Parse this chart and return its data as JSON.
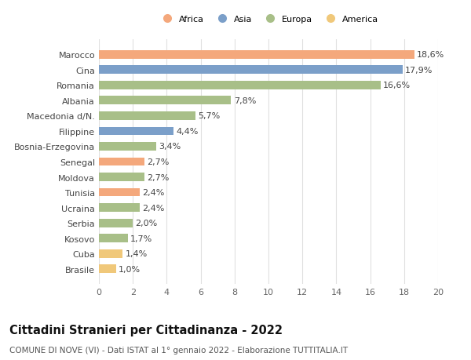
{
  "categories": [
    "Brasile",
    "Cuba",
    "Kosovo",
    "Serbia",
    "Ucraina",
    "Tunisia",
    "Moldova",
    "Senegal",
    "Bosnia-Erzegovina",
    "Filippine",
    "Macedonia d/N.",
    "Albania",
    "Romania",
    "Cina",
    "Marocco"
  ],
  "values": [
    1.0,
    1.4,
    1.7,
    2.0,
    2.4,
    2.4,
    2.7,
    2.7,
    3.4,
    4.4,
    5.7,
    7.8,
    16.6,
    17.9,
    18.6
  ],
  "labels": [
    "1,0%",
    "1,4%",
    "1,7%",
    "2,0%",
    "2,4%",
    "2,4%",
    "2,7%",
    "2,7%",
    "3,4%",
    "4,4%",
    "5,7%",
    "7,8%",
    "16,6%",
    "17,9%",
    "18,6%"
  ],
  "colors": [
    "#F0C87A",
    "#F0C87A",
    "#A8BF88",
    "#A8BF88",
    "#A8BF88",
    "#F4A87C",
    "#A8BF88",
    "#F4A87C",
    "#A8BF88",
    "#7B9FC9",
    "#A8BF88",
    "#A8BF88",
    "#A8BF88",
    "#7B9FC9",
    "#F4A87C"
  ],
  "continent": [
    "America",
    "America",
    "Europa",
    "Europa",
    "Europa",
    "Africa",
    "Europa",
    "Africa",
    "Europa",
    "Asia",
    "Europa",
    "Europa",
    "Europa",
    "Asia",
    "Africa"
  ],
  "legend_labels": [
    "Africa",
    "Asia",
    "Europa",
    "America"
  ],
  "legend_colors": [
    "#F4A87C",
    "#7B9FC9",
    "#A8BF88",
    "#F0C87A"
  ],
  "title": "Cittadini Stranieri per Cittadinanza - 2022",
  "subtitle": "COMUNE DI NOVE (VI) - Dati ISTAT al 1° gennaio 2022 - Elaborazione TUTTITALIA.IT",
  "xlim": [
    0,
    20
  ],
  "xticks": [
    0,
    2,
    4,
    6,
    8,
    10,
    12,
    14,
    16,
    18,
    20
  ],
  "bg_color": "#ffffff",
  "grid_color": "#e0e0e0",
  "bar_height": 0.55,
  "label_fontsize": 8.0,
  "tick_fontsize": 8.0,
  "title_fontsize": 10.5,
  "subtitle_fontsize": 7.5
}
